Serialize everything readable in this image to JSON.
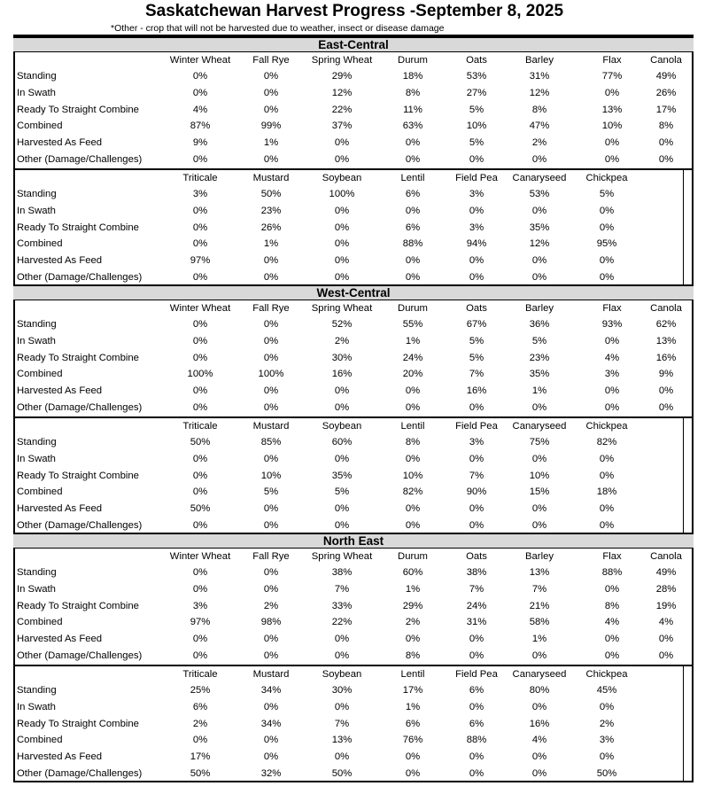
{
  "title": "Saskatchewan Harvest Progress -September 8, 2025",
  "note": "*Other - crop that will not be harvested due to weather, insect or disease damage",
  "row_labels": [
    "Standing",
    "In Swath",
    "Ready To Straight Combine",
    "Combined",
    "Harvested As Feed",
    "Other (Damage/Challenges)"
  ],
  "crops_a": [
    "Winter Wheat",
    "Fall Rye",
    "Spring Wheat",
    "Durum",
    "Oats",
    "Barley",
    "Flax",
    "Canola"
  ],
  "crops_b": [
    "Triticale",
    "Mustard",
    "Soybean",
    "Lentil",
    "Field Pea",
    "Canaryseed",
    "Chickpea"
  ],
  "regions": [
    {
      "name": "East-Central",
      "values_a": [
        [
          "0%",
          "0%",
          "29%",
          "18%",
          "53%",
          "31%",
          "77%",
          "49%"
        ],
        [
          "0%",
          "0%",
          "12%",
          "8%",
          "27%",
          "12%",
          "0%",
          "26%"
        ],
        [
          "4%",
          "0%",
          "22%",
          "11%",
          "5%",
          "8%",
          "13%",
          "17%"
        ],
        [
          "87%",
          "99%",
          "37%",
          "63%",
          "10%",
          "47%",
          "10%",
          "8%"
        ],
        [
          "9%",
          "1%",
          "0%",
          "0%",
          "5%",
          "2%",
          "0%",
          "0%"
        ],
        [
          "0%",
          "0%",
          "0%",
          "0%",
          "0%",
          "0%",
          "0%",
          "0%"
        ]
      ],
      "values_b": [
        [
          "3%",
          "50%",
          "100%",
          "6%",
          "3%",
          "53%",
          "5%"
        ],
        [
          "0%",
          "23%",
          "0%",
          "0%",
          "0%",
          "0%",
          "0%"
        ],
        [
          "0%",
          "26%",
          "0%",
          "6%",
          "3%",
          "35%",
          "0%"
        ],
        [
          "0%",
          "1%",
          "0%",
          "88%",
          "94%",
          "12%",
          "95%"
        ],
        [
          "97%",
          "0%",
          "0%",
          "0%",
          "0%",
          "0%",
          "0%"
        ],
        [
          "0%",
          "0%",
          "0%",
          "0%",
          "0%",
          "0%",
          "0%"
        ]
      ]
    },
    {
      "name": "West-Central",
      "values_a": [
        [
          "0%",
          "0%",
          "52%",
          "55%",
          "67%",
          "36%",
          "93%",
          "62%"
        ],
        [
          "0%",
          "0%",
          "2%",
          "1%",
          "5%",
          "5%",
          "0%",
          "13%"
        ],
        [
          "0%",
          "0%",
          "30%",
          "24%",
          "5%",
          "23%",
          "4%",
          "16%"
        ],
        [
          "100%",
          "100%",
          "16%",
          "20%",
          "7%",
          "35%",
          "3%",
          "9%"
        ],
        [
          "0%",
          "0%",
          "0%",
          "0%",
          "16%",
          "1%",
          "0%",
          "0%"
        ],
        [
          "0%",
          "0%",
          "0%",
          "0%",
          "0%",
          "0%",
          "0%",
          "0%"
        ]
      ],
      "values_b": [
        [
          "50%",
          "85%",
          "60%",
          "8%",
          "3%",
          "75%",
          "82%"
        ],
        [
          "0%",
          "0%",
          "0%",
          "0%",
          "0%",
          "0%",
          "0%"
        ],
        [
          "0%",
          "10%",
          "35%",
          "10%",
          "7%",
          "10%",
          "0%"
        ],
        [
          "0%",
          "5%",
          "5%",
          "82%",
          "90%",
          "15%",
          "18%"
        ],
        [
          "50%",
          "0%",
          "0%",
          "0%",
          "0%",
          "0%",
          "0%"
        ],
        [
          "0%",
          "0%",
          "0%",
          "0%",
          "0%",
          "0%",
          "0%"
        ]
      ]
    },
    {
      "name": "North East",
      "values_a": [
        [
          "0%",
          "0%",
          "38%",
          "60%",
          "38%",
          "13%",
          "88%",
          "49%"
        ],
        [
          "0%",
          "0%",
          "7%",
          "1%",
          "7%",
          "7%",
          "0%",
          "28%"
        ],
        [
          "3%",
          "2%",
          "33%",
          "29%",
          "24%",
          "21%",
          "8%",
          "19%"
        ],
        [
          "97%",
          "98%",
          "22%",
          "2%",
          "31%",
          "58%",
          "4%",
          "4%"
        ],
        [
          "0%",
          "0%",
          "0%",
          "0%",
          "0%",
          "1%",
          "0%",
          "0%"
        ],
        [
          "0%",
          "0%",
          "0%",
          "8%",
          "0%",
          "0%",
          "0%",
          "0%"
        ]
      ],
      "values_b": [
        [
          "25%",
          "34%",
          "30%",
          "17%",
          "6%",
          "80%",
          "45%"
        ],
        [
          "6%",
          "0%",
          "0%",
          "1%",
          "0%",
          "0%",
          "0%"
        ],
        [
          "2%",
          "34%",
          "7%",
          "6%",
          "6%",
          "16%",
          "2%"
        ],
        [
          "0%",
          "0%",
          "13%",
          "76%",
          "88%",
          "4%",
          "3%"
        ],
        [
          "17%",
          "0%",
          "0%",
          "0%",
          "0%",
          "0%",
          "0%"
        ],
        [
          "50%",
          "32%",
          "50%",
          "0%",
          "0%",
          "0%",
          "50%"
        ]
      ]
    }
  ]
}
